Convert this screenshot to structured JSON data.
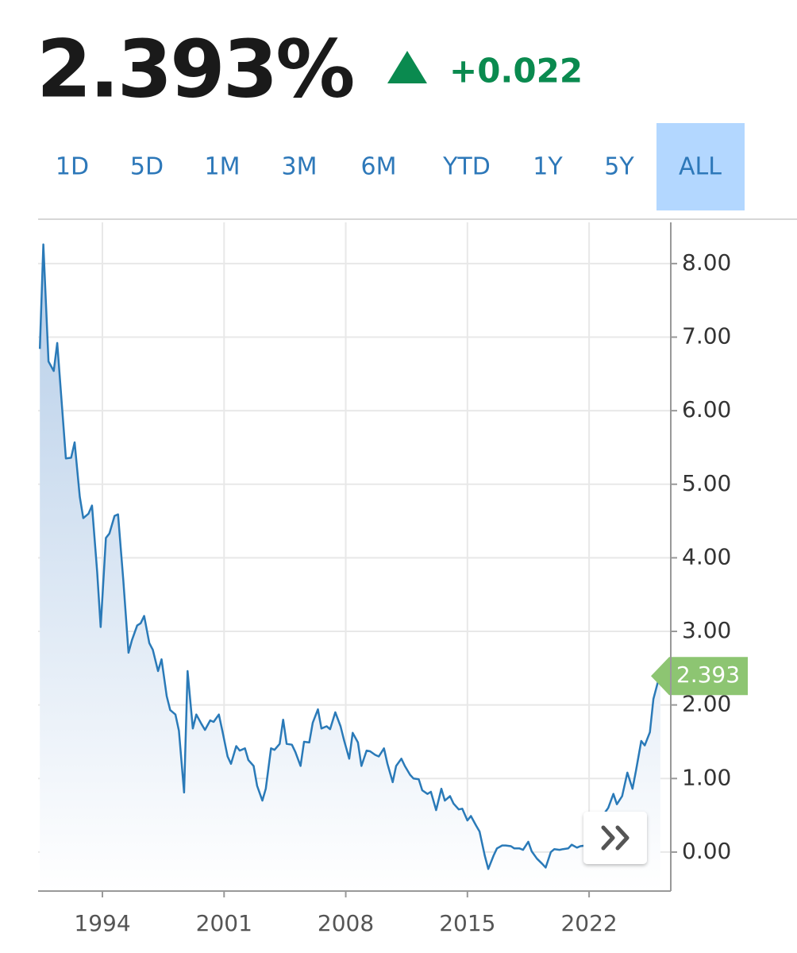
{
  "header": {
    "price": "2.393%",
    "change": "+0.022"
  },
  "tabs": [
    "1D",
    "5D",
    "1M",
    "3M",
    "6M",
    "YTD",
    "1Y",
    "5Y",
    "ALL"
  ],
  "active_tab": 8,
  "chart_data": {
    "type": "line",
    "color": "#2a7ab8",
    "grid": true,
    "xlim": [
      1990.3,
      2026.7
    ],
    "xticks": [
      1994,
      2001,
      2008,
      2015,
      2022
    ],
    "ylim": [
      -0.53,
      8.56
    ],
    "yticks": [
      {
        "value": 0,
        "label": "0.00"
      },
      {
        "value": 1,
        "label": "1.00"
      },
      {
        "value": 2,
        "label": "2.00"
      },
      {
        "value": 3,
        "label": "3.00"
      },
      {
        "value": 4,
        "label": "4.00"
      },
      {
        "value": 5,
        "label": "5.00"
      },
      {
        "value": 6,
        "label": "6.00"
      },
      {
        "value": 7,
        "label": "7.00"
      },
      {
        "value": 8,
        "label": "8.00"
      }
    ],
    "last_value_label": "2.393",
    "x": [
      1990.4,
      1990.6,
      1990.9,
      1991.2,
      1991.4,
      1991.7,
      1991.9,
      1992.2,
      1992.4,
      1992.7,
      1992.9,
      1993.2,
      1993.4,
      1993.7,
      1993.9,
      1994.2,
      1994.4,
      1994.7,
      1994.9,
      1995.2,
      1995.5,
      1995.7,
      1996.0,
      1996.2,
      1996.4,
      1996.7,
      1996.9,
      1997.2,
      1997.4,
      1997.7,
      1997.9,
      1998.2,
      1998.4,
      1998.7,
      1998.9,
      1999.2,
      1999.4,
      1999.7,
      1999.9,
      2000.2,
      2000.4,
      2000.7,
      2000.9,
      2001.2,
      2001.4,
      2001.7,
      2001.9,
      2002.2,
      2002.4,
      2002.7,
      2002.9,
      2003.2,
      2003.4,
      2003.7,
      2003.9,
      2004.2,
      2004.4,
      2004.6,
      2004.9,
      2005.1,
      2005.4,
      2005.6,
      2005.9,
      2006.1,
      2006.4,
      2006.6,
      2006.9,
      2007.1,
      2007.4,
      2007.7,
      2007.9,
      2008.2,
      2008.4,
      2008.7,
      2008.9,
      2009.2,
      2009.4,
      2009.7,
      2009.9,
      2010.2,
      2010.4,
      2010.7,
      2010.9,
      2011.2,
      2011.4,
      2011.7,
      2011.9,
      2012.2,
      2012.4,
      2012.7,
      2012.9,
      2013.2,
      2013.5,
      2013.7,
      2014.0,
      2014.2,
      2014.5,
      2014.7,
      2015.0,
      2015.2,
      2015.5,
      2015.7,
      2016.0,
      2016.2,
      2016.5,
      2016.7,
      2017.0,
      2017.2,
      2017.5,
      2017.7,
      2018.0,
      2018.2,
      2018.5,
      2018.7,
      2019.0,
      2019.3,
      2019.5,
      2019.8,
      2020.0,
      2020.3,
      2020.5,
      2020.8,
      2021.0,
      2021.3,
      2021.5,
      2021.8,
      2022.0,
      2022.3,
      2022.5,
      2022.8,
      2023.1,
      2023.4,
      2023.6,
      2023.9,
      2024.2,
      2024.5,
      2024.7,
      2025.0,
      2025.2,
      2025.5,
      2025.7,
      2026.0,
      2026.1
    ],
    "values": [
      6.84,
      8.26,
      6.67,
      6.54,
      6.92,
      5.97,
      5.35,
      5.36,
      5.57,
      4.83,
      4.54,
      4.6,
      4.71,
      3.81,
      3.06,
      4.27,
      4.33,
      4.57,
      4.59,
      3.7,
      2.71,
      2.88,
      3.08,
      3.11,
      3.21,
      2.84,
      2.75,
      2.46,
      2.62,
      2.12,
      1.93,
      1.87,
      1.65,
      0.81,
      2.46,
      1.68,
      1.87,
      1.74,
      1.66,
      1.79,
      1.77,
      1.87,
      1.65,
      1.3,
      1.2,
      1.44,
      1.38,
      1.41,
      1.25,
      1.17,
      0.9,
      0.7,
      0.86,
      1.41,
      1.39,
      1.47,
      1.8,
      1.47,
      1.46,
      1.36,
      1.17,
      1.5,
      1.49,
      1.76,
      1.94,
      1.68,
      1.71,
      1.67,
      1.9,
      1.71,
      1.52,
      1.27,
      1.62,
      1.49,
      1.17,
      1.38,
      1.37,
      1.32,
      1.3,
      1.41,
      1.2,
      0.95,
      1.17,
      1.27,
      1.17,
      1.05,
      1.0,
      0.99,
      0.84,
      0.79,
      0.82,
      0.57,
      0.86,
      0.7,
      0.76,
      0.66,
      0.58,
      0.59,
      0.43,
      0.49,
      0.36,
      0.28,
      -0.05,
      -0.23,
      -0.05,
      0.05,
      0.09,
      0.09,
      0.08,
      0.05,
      0.05,
      0.03,
      0.14,
      0.01,
      -0.09,
      -0.16,
      -0.21,
      0.0,
      0.04,
      0.03,
      0.04,
      0.05,
      0.1,
      0.06,
      0.08,
      0.09,
      0.12,
      0.2,
      0.35,
      0.5,
      0.6,
      0.79,
      0.65,
      0.76,
      1.08,
      0.86,
      1.11,
      1.51,
      1.45,
      1.63,
      2.08,
      2.35,
      2.393
    ]
  }
}
